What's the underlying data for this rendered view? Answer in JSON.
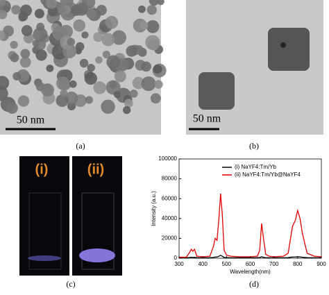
{
  "figure": {
    "panel_labels": [
      "(a)",
      "(b)",
      "(c)",
      "(d)"
    ],
    "scale_bars": [
      "50 nm",
      "50 nm"
    ],
    "vial_labels": [
      "(i)",
      "(ii)"
    ]
  },
  "chart_data": {
    "type": "line",
    "xlabel": "Wavelength(nm)",
    "ylabel": "Intensity (a.u.)",
    "x": [
      300,
      330,
      345,
      352,
      358,
      365,
      375,
      400,
      430,
      445,
      452,
      460,
      468,
      475,
      482,
      490,
      500,
      520,
      550,
      600,
      630,
      640,
      648,
      655,
      665,
      680,
      700,
      740,
      760,
      770,
      778,
      790,
      800,
      810,
      820,
      840,
      870,
      900
    ],
    "series": [
      {
        "name": "(i) NaYF4:Tm/Yb",
        "color": "#000000",
        "values": [
          500,
          500,
          800,
          1000,
          800,
          900,
          500,
          500,
          500,
          800,
          1200,
          1200,
          2000,
          3000,
          2000,
          800,
          500,
          500,
          500,
          500,
          500,
          700,
          1500,
          1000,
          500,
          500,
          500,
          500,
          600,
          1000,
          1200,
          1300,
          1500,
          1300,
          1000,
          600,
          500,
          500
        ]
      },
      {
        "name": "(ii) NaYF4:Tm/Yb@NaYF4",
        "color": "#e00000",
        "values": [
          1000,
          1000,
          6000,
          9000,
          7000,
          9000,
          2000,
          1500,
          2000,
          12000,
          20000,
          18000,
          40000,
          65000,
          45000,
          8000,
          3000,
          2000,
          1500,
          1500,
          2000,
          8000,
          35000,
          22000,
          4000,
          2000,
          1500,
          2000,
          5000,
          20000,
          32000,
          38000,
          48000,
          40000,
          25000,
          5000,
          2000,
          1500
        ]
      }
    ],
    "xlim": [
      300,
      900
    ],
    "xticks": [
      300,
      400,
      500,
      600,
      700,
      800,
      900
    ],
    "ylim": [
      0,
      100000
    ],
    "yticks": [
      0,
      20000,
      40000,
      60000,
      80000,
      100000
    ],
    "legend": "upper-right"
  }
}
